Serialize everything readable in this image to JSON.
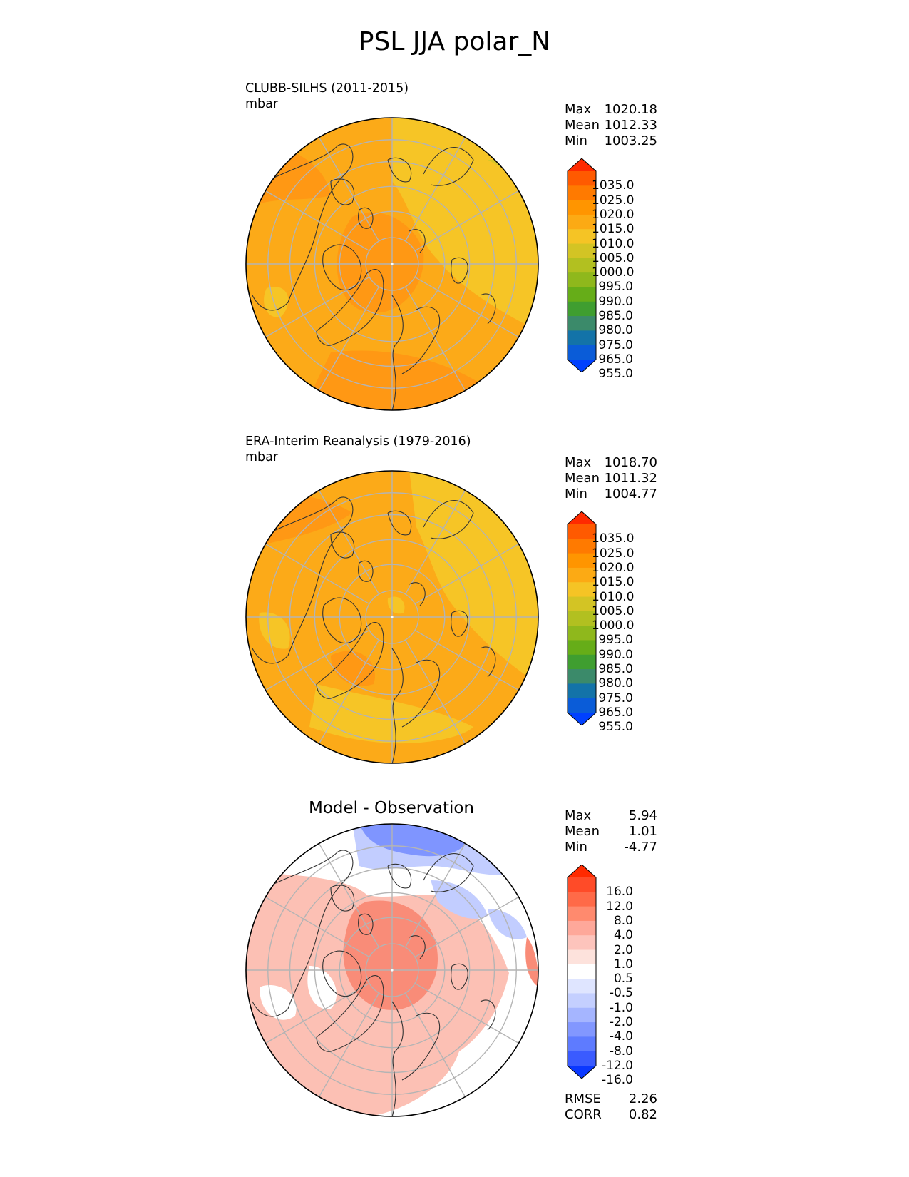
{
  "title": "PSL JJA polar_N",
  "panels": [
    {
      "title": "CLUBB-SILHS (2011-2015)",
      "units": "mbar",
      "stats": [
        {
          "label": "Max",
          "value": "1020.18"
        },
        {
          "label": "Mean",
          "value": "1012.33"
        },
        {
          "label": "Min",
          "value": "1003.25"
        }
      ],
      "colorbar": {
        "labels": [
          "1035.0",
          "1025.0",
          "1020.0",
          "1015.0",
          "1010.0",
          "1005.0",
          "1000.0",
          "995.0",
          "990.0",
          "985.0",
          "980.0",
          "975.0",
          "965.0",
          "955.0"
        ],
        "colors": [
          "#ff2a00",
          "#ff5a00",
          "#ff7a00",
          "#ff9500",
          "#fcaa14",
          "#f5c425",
          "#d3c424",
          "#b2c020",
          "#8fb81c",
          "#66ad18",
          "#3f9e30",
          "#3b8a6a",
          "#1373a8",
          "#0a5cd8",
          "#0040ff"
        ]
      },
      "colors": {
        "base": "#fcaa18",
        "high": "#ff9814",
        "low": "#f6c526",
        "lower": "#d8c628"
      }
    },
    {
      "title": "ERA-Interim Reanalysis (1979-2016)",
      "units": "mbar",
      "stats": [
        {
          "label": "Max",
          "value": "1018.70"
        },
        {
          "label": "Mean",
          "value": "1011.32"
        },
        {
          "label": "Min",
          "value": "1004.77"
        }
      ],
      "colorbar": {
        "labels": [
          "1035.0",
          "1025.0",
          "1020.0",
          "1015.0",
          "1010.0",
          "1005.0",
          "1000.0",
          "995.0",
          "990.0",
          "985.0",
          "980.0",
          "975.0",
          "965.0",
          "955.0"
        ],
        "colors": [
          "#ff2a00",
          "#ff5a00",
          "#ff7a00",
          "#ff9500",
          "#fcaa14",
          "#f5c425",
          "#d3c424",
          "#b2c020",
          "#8fb81c",
          "#66ad18",
          "#3f9e30",
          "#3b8a6a",
          "#1373a8",
          "#0a5cd8",
          "#0040ff"
        ]
      },
      "colors": {
        "base": "#fcaa18",
        "high": "#ff9814",
        "low": "#f6c526",
        "lower": "#d8c628"
      }
    },
    {
      "title": "Model - Observation",
      "stats": [
        {
          "label": "Max",
          "value": "5.94"
        },
        {
          "label": "Mean",
          "value": "1.01"
        },
        {
          "label": "Min",
          "value": "-4.77"
        }
      ],
      "colorbar": {
        "labels": [
          "16.0",
          "12.0",
          "8.0",
          "4.0",
          "2.0",
          "1.0",
          "0.5",
          "-0.5",
          "-1.0",
          "-2.0",
          "-4.0",
          "-8.0",
          "-12.0",
          "-16.0"
        ],
        "colors": [
          "#ff2a00",
          "#ff4b28",
          "#ff6a48",
          "#ff8a6e",
          "#fea89a",
          "#fdc4bc",
          "#fde2dc",
          "#ffffff",
          "#dfe5ff",
          "#c4cfff",
          "#a5b5ff",
          "#8297ff",
          "#5e7bff",
          "#3a5bff",
          "#0a38ff"
        ]
      },
      "metrics": [
        {
          "label": "RMSE",
          "value": "2.26"
        },
        {
          "label": "CORR",
          "value": "0.82"
        }
      ],
      "colors": {
        "base": "#fcc0b4",
        "high": "#f98c78",
        "low": "#c2cdff",
        "lower": "#7f95ff",
        "neutral": "#ffffff"
      }
    }
  ],
  "chart_data": [
    {
      "type": "heatmap",
      "title": "CLUBB-SILHS (2011-2015)",
      "units": "mbar",
      "projection": "north polar stereographic",
      "max": 1020.18,
      "mean": 1012.33,
      "min": 1003.25,
      "levels": [
        955,
        965,
        975,
        980,
        985,
        990,
        995,
        1000,
        1005,
        1010,
        1015,
        1020,
        1025,
        1035
      ]
    },
    {
      "type": "heatmap",
      "title": "ERA-Interim Reanalysis (1979-2016)",
      "units": "mbar",
      "projection": "north polar stereographic",
      "max": 1018.7,
      "mean": 1011.32,
      "min": 1004.77,
      "levels": [
        955,
        965,
        975,
        980,
        985,
        990,
        995,
        1000,
        1005,
        1010,
        1015,
        1020,
        1025,
        1035
      ]
    },
    {
      "type": "heatmap",
      "title": "Model - Observation",
      "projection": "north polar stereographic",
      "max": 5.94,
      "mean": 1.01,
      "min": -4.77,
      "rmse": 2.26,
      "corr": 0.82,
      "levels": [
        -16,
        -12,
        -8,
        -4,
        -2,
        -1,
        -0.5,
        0.5,
        1,
        2,
        4,
        8,
        12,
        16
      ]
    }
  ]
}
